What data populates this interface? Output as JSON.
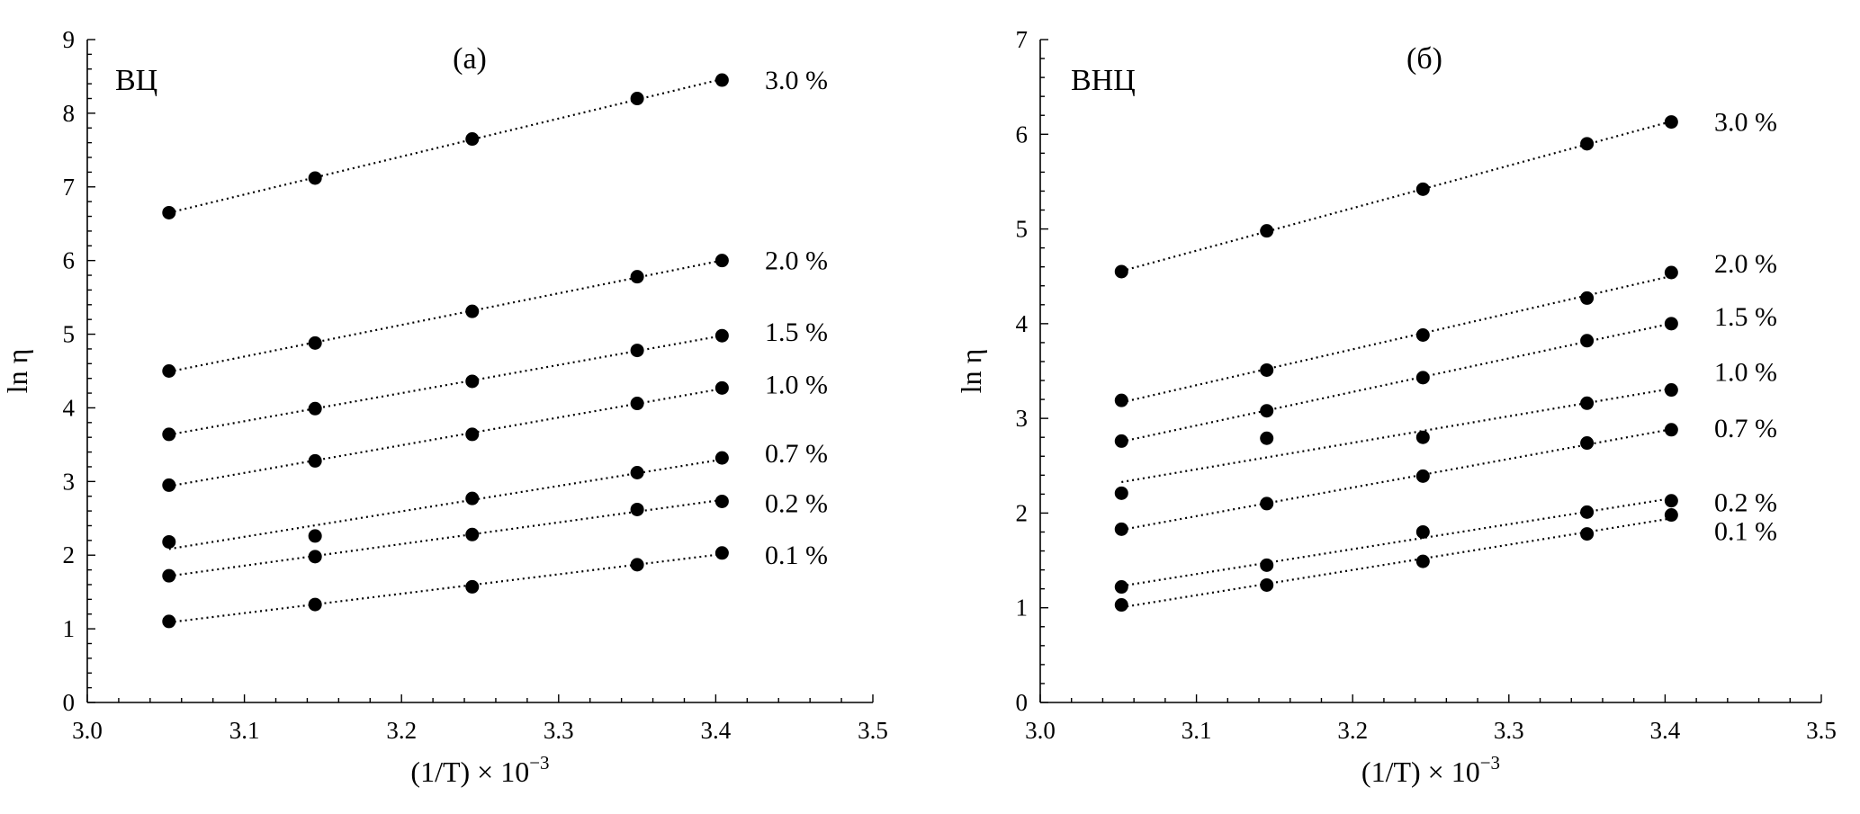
{
  "chart_data": [
    {
      "type": "scatter",
      "panel_label": "(а)",
      "material_label": "ВЦ",
      "xlabel": "(1/T) × 10",
      "xlabel_exponent": "−3",
      "ylabel": "ln η",
      "xlim": [
        3.0,
        3.5
      ],
      "ylim": [
        0,
        9
      ],
      "x_ticks": [
        "3.0",
        "3.1",
        "3.2",
        "3.3",
        "3.4",
        "3.5"
      ],
      "y_ticks": [
        "0",
        "1",
        "2",
        "3",
        "4",
        "5",
        "6",
        "7",
        "8",
        "9"
      ],
      "grid": false,
      "trendlines": "linear, dotted",
      "x": [
        3.052,
        3.145,
        3.245,
        3.35,
        3.404
      ],
      "series": [
        {
          "name": "3.0 %",
          "values": [
            6.65,
            7.12,
            7.65,
            8.2,
            8.45
          ]
        },
        {
          "name": "2.0 %",
          "values": [
            4.5,
            4.88,
            5.31,
            5.78,
            6.0
          ]
        },
        {
          "name": "1.5 %",
          "values": [
            3.64,
            3.99,
            4.36,
            4.78,
            4.98
          ]
        },
        {
          "name": "1.0 %",
          "values": [
            2.95,
            3.28,
            3.64,
            4.06,
            4.27
          ]
        },
        {
          "name": "0.7 %",
          "values": [
            2.18,
            2.26,
            2.77,
            3.12,
            3.32
          ]
        },
        {
          "name": "0.2 %",
          "values": [
            1.72,
            1.98,
            2.28,
            2.62,
            2.73
          ]
        },
        {
          "name": "0.1 %",
          "values": [
            1.1,
            1.33,
            1.57,
            1.87,
            2.03
          ]
        }
      ]
    },
    {
      "type": "scatter",
      "panel_label": "(б)",
      "material_label": "ВНЦ",
      "xlabel": "(1/T) × 10",
      "xlabel_exponent": "−3",
      "ylabel": "ln η",
      "xlim": [
        3.0,
        3.5
      ],
      "ylim": [
        0,
        7
      ],
      "x_ticks": [
        "3.0",
        "3.1",
        "3.2",
        "3.3",
        "3.4",
        "3.5"
      ],
      "y_ticks": [
        "0",
        "1",
        "2",
        "3",
        "4",
        "5",
        "6",
        "7"
      ],
      "grid": false,
      "trendlines": "linear, dotted",
      "x": [
        3.052,
        3.145,
        3.245,
        3.35,
        3.404
      ],
      "series": [
        {
          "name": "3.0 %",
          "values": [
            4.55,
            4.98,
            5.42,
            5.9,
            6.13
          ]
        },
        {
          "name": "2.0 %",
          "values": [
            3.19,
            3.51,
            3.88,
            4.27,
            4.54
          ]
        },
        {
          "name": "1.5 %",
          "values": [
            2.76,
            3.08,
            3.43,
            3.82,
            4.0
          ]
        },
        {
          "name": "1.0 %",
          "values": [
            2.21,
            2.79,
            2.8,
            3.16,
            3.3
          ]
        },
        {
          "name": "0.7 %",
          "values": [
            1.83,
            2.1,
            2.39,
            2.74,
            2.88
          ]
        },
        {
          "name": "0.2 %",
          "values": [
            1.22,
            1.45,
            1.8,
            2.01,
            2.13
          ]
        },
        {
          "name": "0.1 %",
          "values": [
            1.03,
            1.24,
            1.49,
            1.78,
            1.98
          ]
        }
      ]
    }
  ]
}
